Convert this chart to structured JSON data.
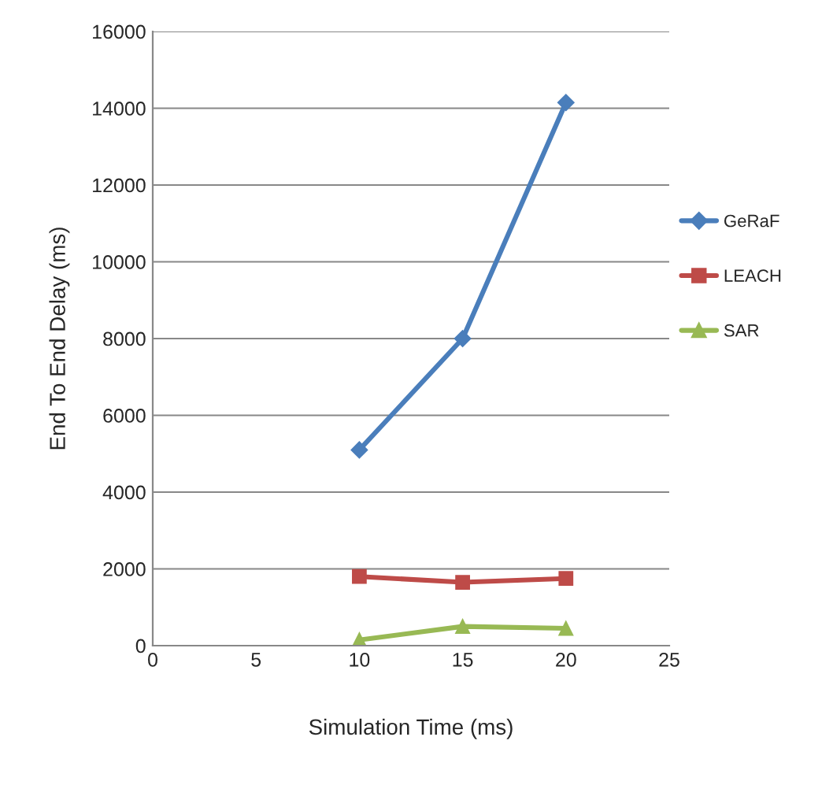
{
  "chart_data": {
    "type": "line",
    "xlabel": "Simulation Time (ms)",
    "ylabel": "End To End Delay (ms)",
    "x": [
      10,
      15,
      20
    ],
    "series": [
      {
        "name": "GeRaF",
        "color": "#4a7ebb",
        "marker": "diamond",
        "values": [
          5100,
          8000,
          14150
        ]
      },
      {
        "name": "LEACH",
        "color": "#be4b48",
        "marker": "square",
        "values": [
          1800,
          1650,
          1750
        ]
      },
      {
        "name": "SAR",
        "color": "#98b954",
        "marker": "triangle",
        "values": [
          150,
          500,
          450
        ]
      }
    ],
    "xlim": [
      0,
      25
    ],
    "xticks": [
      0,
      5,
      10,
      15,
      20,
      25
    ],
    "ylim": [
      0,
      16000
    ],
    "yticks": [
      0,
      2000,
      4000,
      6000,
      8000,
      10000,
      12000,
      14000,
      16000
    ],
    "grid": "y",
    "legend": "right"
  }
}
